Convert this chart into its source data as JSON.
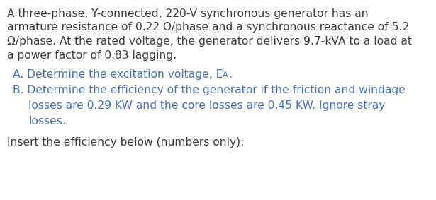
{
  "bg_color": "#ffffff",
  "text_color_black": "#3c3c3c",
  "text_color_blue": "#4472c4",
  "para_lines": [
    "A three-phase, Y-connected, 220-V synchronous generator has an",
    "armature resistance of 0.22 Ω/phase and a synchronous reactance of 5.2",
    "Ω/phase. At the rated voltage, the generator delivers 9.7-kVA to a load at",
    "a power factor of 0.83 lagging."
  ],
  "line_A_main": "A. Determine the excitation voltage, E",
  "line_A_sub": "A",
  "line_A_suffix": ".",
  "line_B1": "B. Determine the efficiency of the generator if the friction and windage",
  "line_B2": "losses are 0.29 KW and the core losses are 0.45 KW. Ignore stray",
  "line_B3": "losses.",
  "line_footer": "Insert the efficiency below (numbers only):",
  "font_size": 11.2,
  "font_size_sub": 8.0,
  "font_family": "DejaVu Sans",
  "fig_width": 6.15,
  "fig_height": 2.83,
  "dpi": 100
}
